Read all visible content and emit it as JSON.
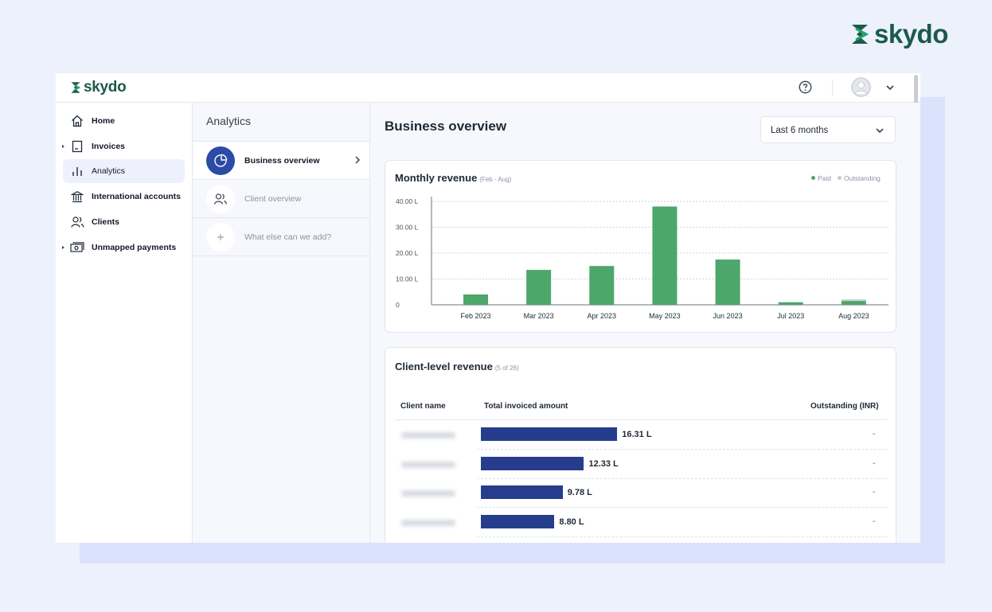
{
  "brand": {
    "name": "skydo",
    "color": "#1c5a4b",
    "accent": "#22a06b"
  },
  "topbar": {
    "logo_text": "skydo",
    "help_icon": "help-circle-icon",
    "avatar_icon": "user-avatar-icon",
    "menu_icon": "chevron-down-icon"
  },
  "sidebar": {
    "items": [
      {
        "label": "Home",
        "icon": "home-icon",
        "active": false,
        "expandable": false
      },
      {
        "label": "Invoices",
        "icon": "invoice-icon",
        "active": false,
        "expandable": true
      },
      {
        "label": "Analytics",
        "icon": "bar-chart-icon",
        "active": true,
        "expandable": false
      },
      {
        "label": "International accounts",
        "icon": "bank-icon",
        "active": false,
        "expandable": false
      },
      {
        "label": "Clients",
        "icon": "users-icon",
        "active": false,
        "expandable": false
      },
      {
        "label": "Unmapped payments",
        "icon": "cash-icon",
        "active": false,
        "expandable": true
      }
    ]
  },
  "subpanel": {
    "title": "Analytics",
    "items": [
      {
        "label": "Business overview",
        "icon": "pie-chart-icon",
        "active": true
      },
      {
        "label": "Client overview",
        "icon": "users-icon",
        "active": false
      },
      {
        "label": "What else can we add?",
        "icon": "plus-icon",
        "active": false
      }
    ]
  },
  "main": {
    "title": "Business overview",
    "range_select": {
      "value": "Last 6 months"
    },
    "monthly_revenue": {
      "title": "Monthly revenue",
      "subtitle": "(Feb - Aug)",
      "legend": [
        {
          "label": "Paid",
          "color": "#4da66a"
        },
        {
          "label": "Outstanding",
          "color": "#c7ccd4"
        }
      ]
    },
    "client_revenue": {
      "title": "Client-level revenue",
      "subtitle": "(5 of 26)",
      "columns": [
        "Client name",
        "Total invoiced amount",
        "Outstanding (INR)"
      ],
      "rows": [
        {
          "amount": 16.31,
          "amount_label": "16.31 L",
          "outstanding": "-"
        },
        {
          "amount": 12.33,
          "amount_label": "12.33 L",
          "outstanding": "-"
        },
        {
          "amount": 9.78,
          "amount_label": "9.78 L",
          "outstanding": "-"
        },
        {
          "amount": 8.8,
          "amount_label": "8.80 L",
          "outstanding": "-"
        }
      ]
    }
  },
  "chart_data": {
    "type": "bar",
    "title": "Monthly revenue",
    "subtitle": "(Feb - Aug)",
    "categories": [
      "Feb 2023",
      "Mar 2023",
      "Apr 2023",
      "May 2023",
      "Jun 2023",
      "Jul 2023",
      "Aug 2023"
    ],
    "series": [
      {
        "name": "Paid",
        "color": "#4da66a",
        "values": [
          4.0,
          13.5,
          15.0,
          38.0,
          17.5,
          1.0,
          1.5
        ]
      },
      {
        "name": "Outstanding",
        "color": "#c7ccd4",
        "values": [
          0,
          0,
          0,
          0,
          0,
          0,
          0.6
        ]
      }
    ],
    "yticks": [
      "0",
      "10.00 L",
      "20.00 L",
      "30.00 L",
      "40.00 L"
    ],
    "ylim": [
      0,
      40
    ],
    "stacked": true,
    "grid": true,
    "legend_position": "top-right"
  }
}
